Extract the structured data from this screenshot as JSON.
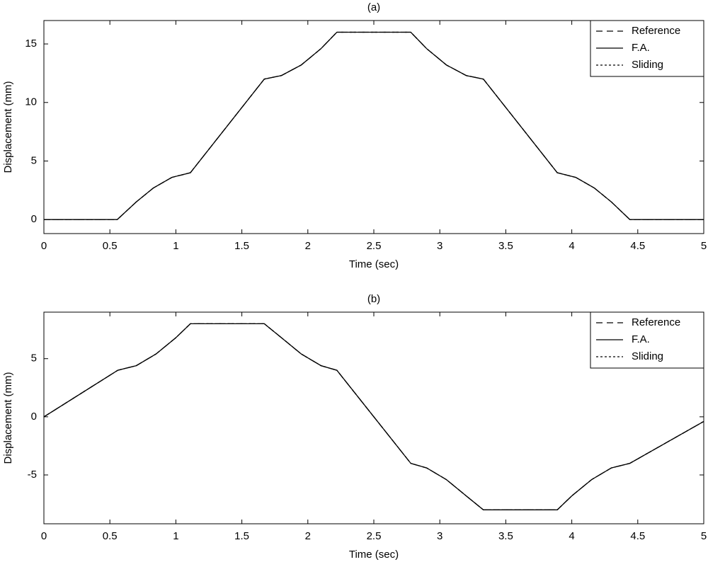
{
  "chart_data": [
    {
      "type": "line",
      "title": "(a)",
      "xlabel": "Time (sec)",
      "ylabel": "Displacement (mm)",
      "x": [
        0,
        0.556,
        0.7,
        0.83,
        0.97,
        1.11,
        1.67,
        1.8,
        1.95,
        2.1,
        2.22,
        2.78,
        2.9,
        3.05,
        3.2,
        3.33,
        3.89,
        4.03,
        4.17,
        4.3,
        4.44,
        5
      ],
      "series": [
        {
          "name": "Reference",
          "color": "#000000",
          "linestyle": "dashed",
          "values": [
            0,
            0,
            1.5,
            2.7,
            3.6,
            4,
            12,
            12.3,
            13.2,
            14.6,
            16,
            16,
            14.6,
            13.2,
            12.3,
            12,
            4,
            3.6,
            2.7,
            1.5,
            0,
            0
          ]
        },
        {
          "name": "F.A.",
          "color": "#000000",
          "linestyle": "solid",
          "values": [
            0,
            0,
            1.5,
            2.7,
            3.6,
            4,
            12,
            12.3,
            13.2,
            14.6,
            16,
            16,
            14.6,
            13.2,
            12.3,
            12,
            4,
            3.6,
            2.7,
            1.5,
            0,
            0
          ]
        },
        {
          "name": "Sliding",
          "color": "#000000",
          "linestyle": "dotted",
          "values": [
            0,
            0,
            1.5,
            2.7,
            3.6,
            4,
            12,
            12.3,
            13.2,
            14.6,
            16,
            16,
            14.6,
            13.2,
            12.3,
            12,
            4,
            3.6,
            2.7,
            1.5,
            0,
            0
          ]
        }
      ],
      "xlim": [
        0,
        5
      ],
      "xticks": [
        0,
        0.5,
        1,
        1.5,
        2,
        2.5,
        3,
        3.5,
        4,
        4.5,
        5
      ],
      "ylim": [
        -1.2,
        17
      ],
      "yticks": [
        0,
        5,
        10,
        15
      ],
      "legend": "upper right"
    },
    {
      "type": "line",
      "title": "(b)",
      "xlabel": "Time (sec)",
      "ylabel": "Displacement (mm)",
      "x": [
        0,
        0.56,
        0.7,
        0.85,
        1.0,
        1.11,
        1.67,
        1.8,
        1.95,
        2.1,
        2.22,
        2.78,
        2.9,
        3.05,
        3.2,
        3.33,
        3.89,
        4.0,
        4.15,
        4.3,
        4.44,
        5
      ],
      "series": [
        {
          "name": "Reference",
          "color": "#000000",
          "linestyle": "dashed",
          "values": [
            0,
            4,
            4.4,
            5.4,
            6.8,
            8,
            8,
            6.8,
            5.4,
            4.4,
            4,
            -4,
            -4.4,
            -5.4,
            -6.8,
            -8,
            -8,
            -6.8,
            -5.4,
            -4.4,
            -4,
            -0.4
          ]
        },
        {
          "name": "F.A.",
          "color": "#000000",
          "linestyle": "solid",
          "values": [
            0,
            4,
            4.4,
            5.4,
            6.8,
            8,
            8,
            6.8,
            5.4,
            4.4,
            4,
            -4,
            -4.4,
            -5.4,
            -6.8,
            -8,
            -8,
            -6.8,
            -5.4,
            -4.4,
            -4,
            -0.4
          ]
        },
        {
          "name": "Sliding",
          "color": "#000000",
          "linestyle": "dotted",
          "values": [
            0,
            4,
            4.4,
            5.4,
            6.8,
            8,
            8,
            6.8,
            5.4,
            4.4,
            4,
            -4,
            -4.4,
            -5.4,
            -6.8,
            -8,
            -8,
            -6.8,
            -5.4,
            -4.4,
            -4,
            -0.4
          ]
        }
      ],
      "xlim": [
        0,
        5
      ],
      "xticks": [
        0,
        0.5,
        1,
        1.5,
        2,
        2.5,
        3,
        3.5,
        4,
        4.5,
        5
      ],
      "ylim": [
        -9.2,
        9
      ],
      "yticks": [
        -5,
        0,
        5
      ],
      "legend": "upper right"
    }
  ]
}
